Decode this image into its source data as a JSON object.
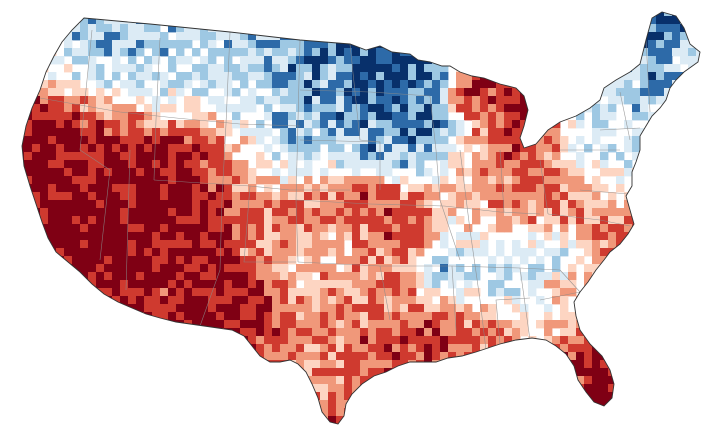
{
  "map": {
    "subject": "contiguous-united-states",
    "projection": "albers-style",
    "palette": {
      "c_-3": "#08306b",
      "c_-2": "#2d6aa8",
      "c_-1": "#9ec8e3",
      "c_-0": "#dcebf5",
      "c_0": "#ffffff",
      "c_1": "#fdd5c2",
      "c_2": "#f0987a",
      "c_3": "#cf3a2f",
      "c_4": "#7f0014"
    },
    "outline_color": "#333333",
    "state_line_color": "#8a8a8a"
  }
}
